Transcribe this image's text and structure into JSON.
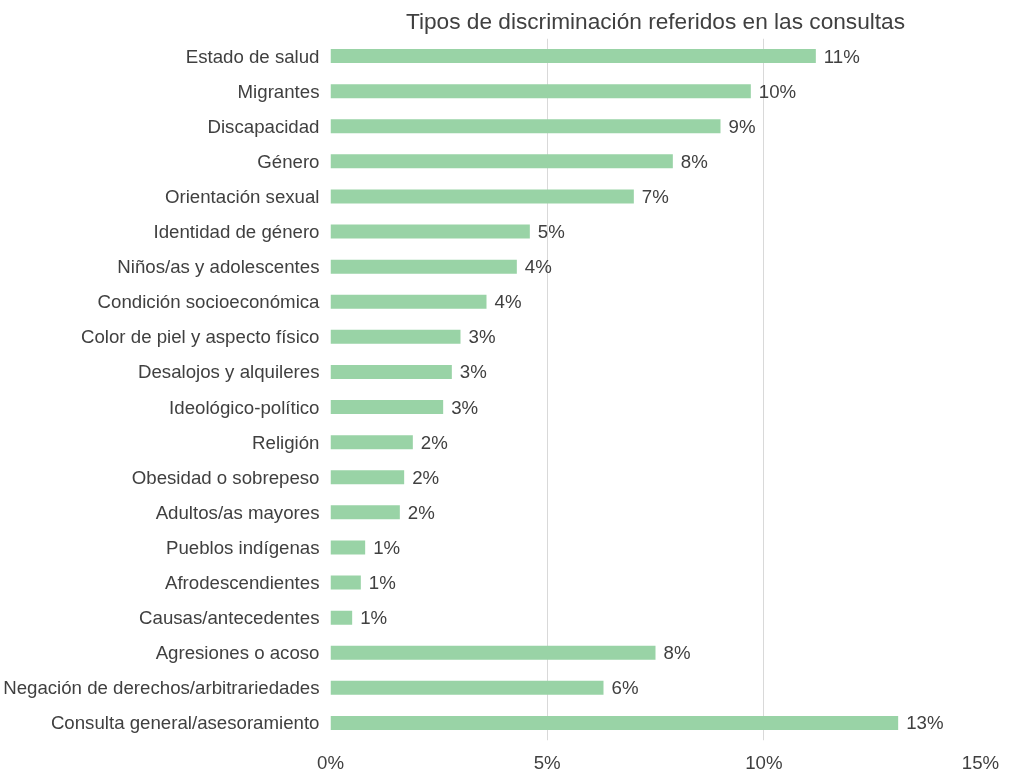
{
  "chart_data": {
    "type": "bar",
    "orientation": "horizontal",
    "title": "Tipos de discriminación referidos en las consultas",
    "categories": [
      "Estado de salud",
      "Migrantes",
      "Discapacidad",
      "Género",
      "Orientación sexual",
      "Identidad de género",
      "Niños/as y adolescentes",
      "Condición socioeconómica",
      "Color de piel y aspecto físico",
      "Desalojos y alquileres",
      "Ideológico-político",
      "Religión",
      "Obesidad o sobrepeso",
      "Adultos/as mayores",
      "Pueblos indígenas",
      "Afrodescendientes",
      "Causas/antecedentes",
      "Agresiones o acoso",
      "Negación de derechos/arbitrariedades",
      "Consulta general/asesoramiento"
    ],
    "values": [
      11.2,
      9.7,
      9.0,
      7.9,
      7.0,
      4.6,
      4.3,
      3.6,
      3.0,
      2.8,
      2.6,
      1.9,
      1.7,
      1.6,
      0.8,
      0.7,
      0.5,
      7.5,
      6.3,
      13.1
    ],
    "value_labels": [
      "11%",
      "10%",
      "9%",
      "8%",
      "7%",
      "5%",
      "4%",
      "4%",
      "3%",
      "3%",
      "3%",
      "2%",
      "2%",
      "2%",
      "1%",
      "1%",
      "1%",
      "8%",
      "6%",
      "13%"
    ],
    "color": "#99d3a6",
    "xlim": [
      0,
      15
    ],
    "xticks": [
      {
        "value": 0,
        "label": "0%"
      },
      {
        "value": 5,
        "label": "5%"
      },
      {
        "value": 10,
        "label": "10%"
      },
      {
        "value": 15,
        "label": "15%"
      }
    ],
    "grid": "x"
  }
}
